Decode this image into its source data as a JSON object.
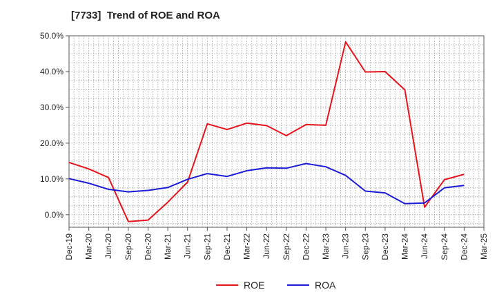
{
  "chart_data": {
    "type": "line",
    "title": "[7733]  Trend of ROE and ROA",
    "xlabel": "",
    "ylabel": "",
    "categories": [
      "Dec-19",
      "Mar-20",
      "Jun-20",
      "Sep-20",
      "Dec-20",
      "Mar-21",
      "Jun-21",
      "Sep-21",
      "Dec-21",
      "Mar-22",
      "Jun-22",
      "Sep-22",
      "Dec-22",
      "Mar-23",
      "Jun-23",
      "Sep-23",
      "Dec-23",
      "Mar-24",
      "Jun-24",
      "Sep-24",
      "Dec-24",
      "Mar-25"
    ],
    "ylim": [
      -3.5,
      50
    ],
    "yticks": [
      0,
      10,
      20,
      30,
      40,
      50
    ],
    "ytick_labels": [
      "0.0%",
      "10.0%",
      "20.0%",
      "30.0%",
      "40.0%",
      "50.0%"
    ],
    "grid": true,
    "legend_position": "bottom-center",
    "series": [
      {
        "name": "ROE",
        "color": "#e8131a",
        "values": [
          14.6,
          12.8,
          10.4,
          -1.9,
          -1.5,
          3.5,
          9.1,
          25.4,
          23.8,
          25.6,
          24.9,
          22.1,
          25.2,
          25.0,
          48.3,
          39.9,
          40.0,
          34.9,
          2.1,
          9.8,
          11.3,
          null
        ]
      },
      {
        "name": "ROA",
        "color": "#1a1ad8",
        "values": [
          10.1,
          8.8,
          7.1,
          6.4,
          6.8,
          7.6,
          9.9,
          11.5,
          10.7,
          12.3,
          13.1,
          13.0,
          14.3,
          13.4,
          11.0,
          6.6,
          6.1,
          3.1,
          3.3,
          7.5,
          8.2,
          null
        ]
      }
    ]
  }
}
